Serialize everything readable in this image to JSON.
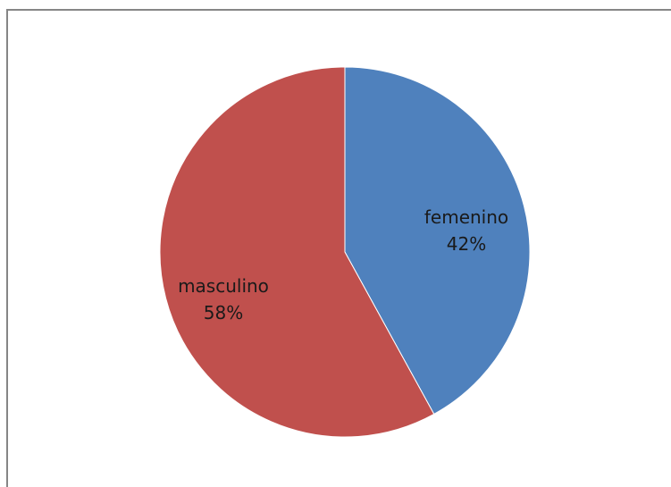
{
  "chart_data": {
    "type": "pie",
    "title": "",
    "start_angle_deg": 0,
    "direction": "clockwise",
    "slices": [
      {
        "label": "femenino",
        "value": 42,
        "percent_label": "42%",
        "color": "#4f81bd"
      },
      {
        "label": "masculino",
        "value": 58,
        "percent_label": "58%",
        "color": "#c0504d"
      }
    ],
    "legend": "none"
  }
}
